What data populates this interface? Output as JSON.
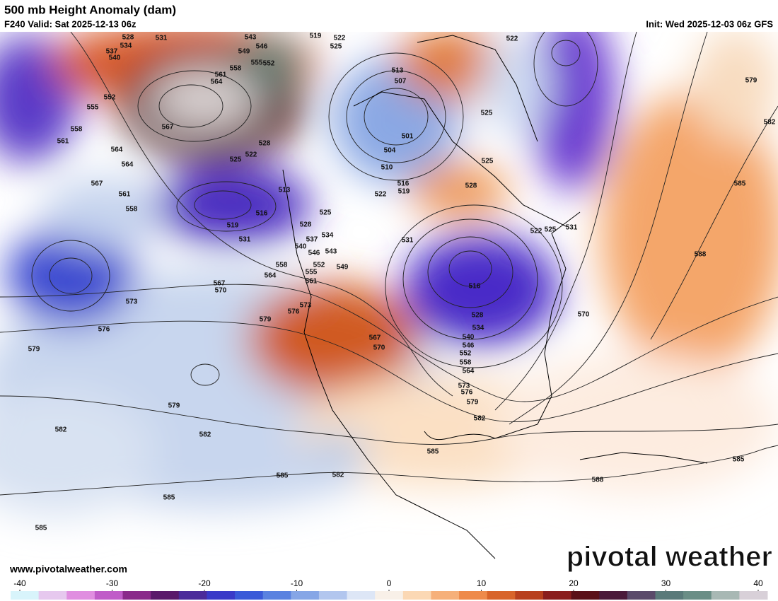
{
  "header": {
    "title": "500 mb Height Anomaly (dam)",
    "valid": "F240 Valid: Sat 2025-12-13 06z",
    "init": "Init: Wed 2025-12-03 06z GFS"
  },
  "map": {
    "contour_labels": [
      528,
      531,
      534,
      537,
      540,
      543,
      546,
      549,
      555,
      552,
      558,
      561,
      564,
      567,
      552,
      555,
      558,
      561,
      564,
      564,
      567,
      561,
      558,
      519,
      522,
      525,
      522,
      513,
      507,
      501,
      504,
      510,
      525,
      525,
      528,
      522,
      516,
      519,
      513,
      516,
      519,
      531,
      528,
      525,
      522,
      525,
      528,
      534,
      537,
      540,
      546,
      543,
      552,
      549,
      558,
      555,
      561,
      564,
      567,
      570,
      573,
      576,
      579,
      579,
      576,
      573,
      567,
      570,
      531,
      522,
      525,
      531,
      516,
      528,
      534,
      540,
      546,
      552,
      558,
      564,
      573,
      576,
      579,
      582,
      585,
      570,
      579,
      582,
      585,
      588,
      588,
      585,
      579,
      582,
      582,
      585,
      582,
      585,
      585
    ]
  },
  "colorbar": {
    "range": [
      -40,
      40
    ],
    "ticks": [
      -40,
      -30,
      -20,
      -10,
      0,
      10,
      20,
      30,
      40
    ],
    "colors": [
      "#d8f4fb",
      "#e6c8ee",
      "#e08ee0",
      "#c05cc8",
      "#8a2a8a",
      "#5a1a6a",
      "#4b2b9a",
      "#3a3ac8",
      "#3a5ad8",
      "#5a82e0",
      "#86a6e6",
      "#b2c6ee",
      "#dde6f6",
      "#f8f0e8",
      "#fbd8b4",
      "#f6b07a",
      "#ee8a4a",
      "#d8642a",
      "#b8401e",
      "#8a1e1e",
      "#5a1018",
      "#4a1a3a",
      "#5a4a6a",
      "#5a7a7a",
      "#6a8e86",
      "#a8b8b4",
      "#d8d0d8"
    ]
  },
  "footer": {
    "url": "www.pivotalweather.com",
    "brand": "pivotal weather"
  }
}
